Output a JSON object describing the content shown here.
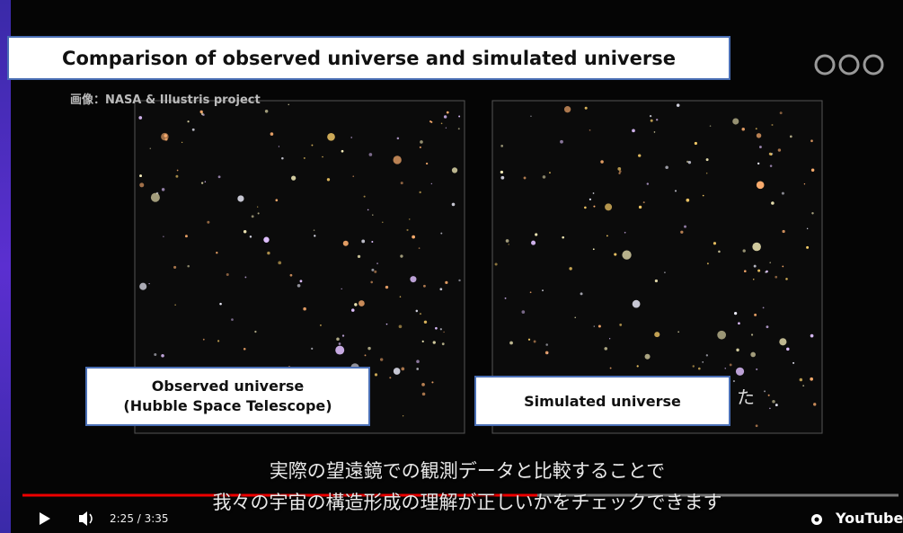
{
  "header": {
    "title": "Comparison of observed universe and simulated universe",
    "credit": "画像：NASA & Illustris project"
  },
  "panels": [
    {
      "label_lines": [
        "Observed universe",
        "(Hubble Space Telescope)"
      ]
    },
    {
      "label_lines": [
        "Simulated universe"
      ],
      "overlay_text": "た"
    }
  ],
  "subtitles": [
    "実際の望遠鏡での観測データと比較することで",
    "我々の宇宙の構造形成の理解が正しいかをチェックできます"
  ],
  "player": {
    "time": "2:25 / 3:35",
    "brand": "YouTube"
  }
}
